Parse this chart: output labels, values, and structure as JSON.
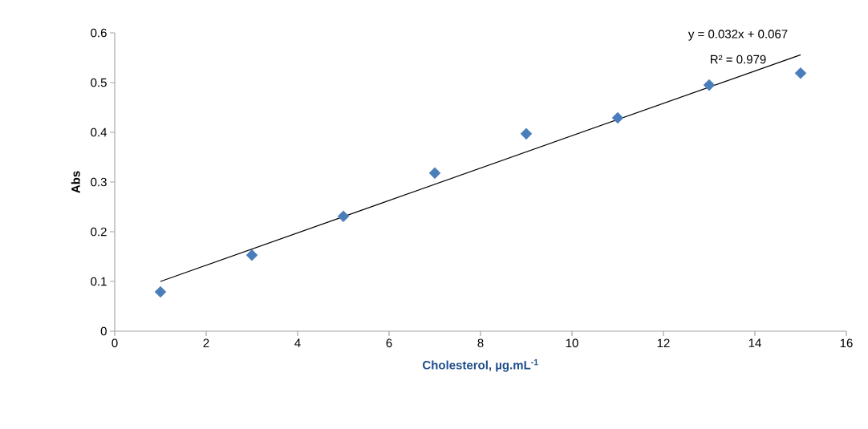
{
  "chart_data": {
    "type": "scatter",
    "xlabel": "Cholesterol, µg.mL$^{-1}$",
    "ylabel": "Abs",
    "xlim": [
      0,
      16
    ],
    "xticks": [
      0,
      2,
      4,
      6,
      8,
      10,
      12,
      14,
      16
    ],
    "ylim": [
      0,
      0.6
    ],
    "yticks": [
      0,
      0.1,
      0.2,
      0.3,
      0.4,
      0.5,
      0.6
    ],
    "series": [
      {
        "marker": "diamond",
        "color": "#4a7ebb",
        "x": [
          1,
          3,
          5,
          7,
          9,
          11,
          13,
          15
        ],
        "values": [
          0.079,
          0.153,
          0.231,
          0.318,
          0.397,
          0.429,
          0.495,
          0.519
        ]
      },
      {
        "type": "line",
        "marker": "none",
        "line_style": "solid",
        "color": "#000000",
        "x": [
          1,
          15
        ],
        "values": [
          0.1,
          0.556
        ]
      }
    ],
    "annotations": [
      "y = 0.032x + 0.067",
      "R² = 0.979"
    ]
  }
}
